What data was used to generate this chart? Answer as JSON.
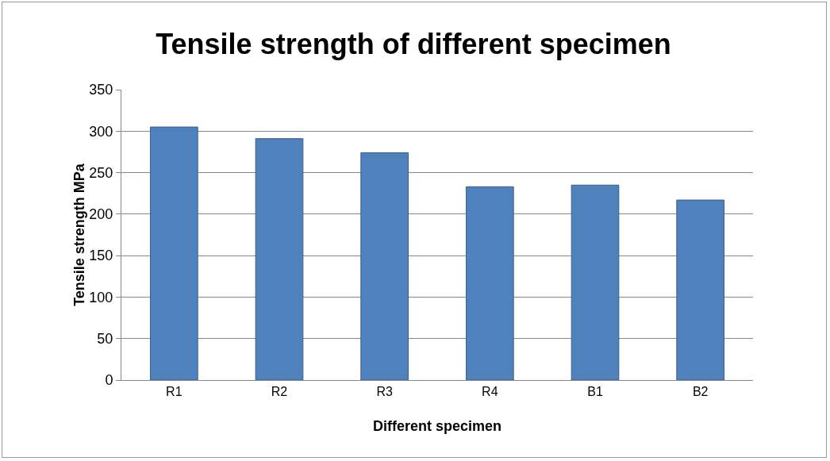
{
  "chart_data": {
    "type": "bar",
    "title": "Tensile strength of different specimen",
    "xlabel": "Different specimen",
    "ylabel": "Tensile strength MPa",
    "categories": [
      "R1",
      "R2",
      "R3",
      "R4",
      "B1",
      "B2"
    ],
    "values": [
      305,
      291,
      274,
      233,
      235,
      217
    ],
    "color": "#4f81bd",
    "ylim": [
      0,
      350
    ],
    "yticks": [
      0,
      50,
      100,
      150,
      200,
      250,
      300,
      350
    ],
    "grid": "y"
  }
}
